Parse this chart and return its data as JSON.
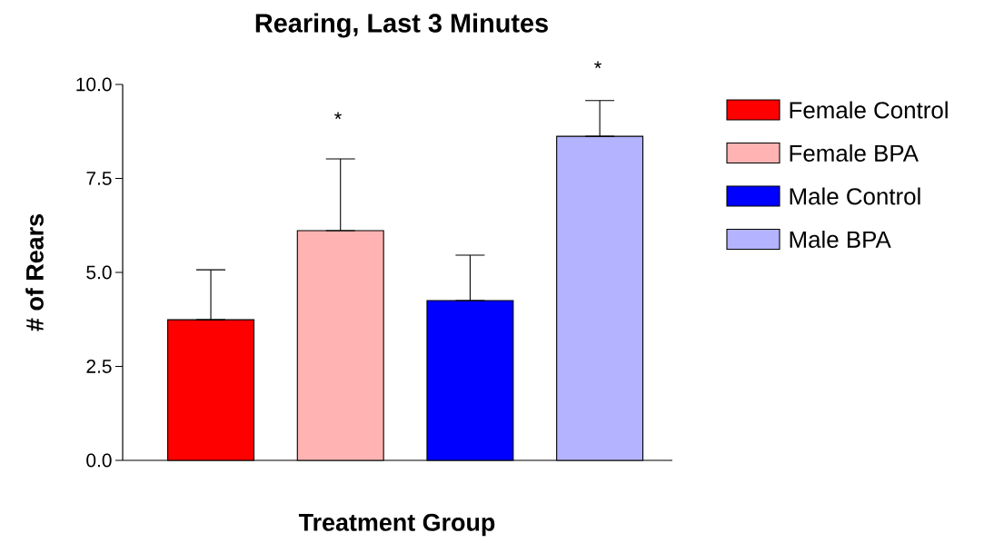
{
  "chart_data": {
    "type": "bar",
    "title": "Rearing, Last 3 Minutes",
    "xlabel": "Treatment Group",
    "ylabel": "# of Rears",
    "categories": [
      null,
      null,
      null,
      null
    ],
    "series": [
      {
        "name": "Female Control",
        "color": "#ff0000",
        "values": [
          3.74,
          null,
          null,
          null
        ],
        "errors": [
          [
            3.74,
            5.07
          ],
          null,
          null,
          null
        ]
      },
      {
        "name": "Female BPA",
        "color": "#ffb3b3",
        "values": [
          null,
          6.11,
          null,
          null
        ],
        "errors": [
          null,
          [
            6.11,
            8.02
          ],
          null,
          null
        ]
      },
      {
        "name": "Male Control",
        "color": "#0000ff",
        "values": [
          null,
          null,
          4.25,
          null
        ],
        "errors": [
          null,
          null,
          [
            4.25,
            5.46
          ],
          null
        ]
      },
      {
        "name": "Male BPA",
        "color": "#b3b3ff",
        "values": [
          null,
          null,
          null,
          8.62
        ],
        "errors": [
          null,
          null,
          null,
          [
            8.62,
            9.57
          ]
        ]
      }
    ],
    "ylim": [
      0,
      10
    ],
    "yticks": [
      {
        "value": 0,
        "label": "0.0"
      },
      {
        "value": 2.5,
        "label": "2.5"
      },
      {
        "value": 5,
        "label": "5.0"
      },
      {
        "value": 7.5,
        "label": "7.5"
      },
      {
        "value": 10,
        "label": "10.0"
      }
    ],
    "annotations": [
      "*",
      "*"
    ],
    "legend": "right"
  }
}
